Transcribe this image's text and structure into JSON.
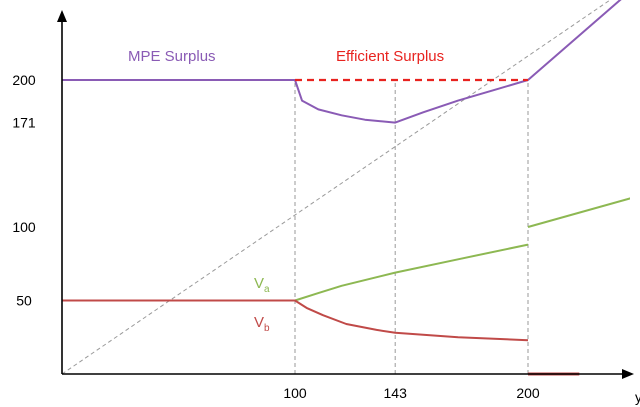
{
  "chart_data": {
    "type": "line",
    "title": "",
    "xlabel": "y",
    "ylabel": "",
    "xlim": [
      0,
      245
    ],
    "ylim": [
      0,
      265
    ],
    "x_ticks": [
      "100",
      "143",
      "200"
    ],
    "y_ticks": [
      "200",
      "171",
      "100",
      "50"
    ],
    "grid": false,
    "legend": "none",
    "colors": {
      "purple": "#8A5BB5",
      "red": "#E8231F",
      "green": "#8DB852",
      "darkred": "#C04A48",
      "dash": "#9a9a9a",
      "axis": "#000000"
    },
    "annotations": {
      "mpe_surplus": "MPE Surplus",
      "efficient_surplus": "Efficient Surplus",
      "va": "V",
      "va_sub": "a",
      "vb": "V",
      "vb_sub": "b"
    },
    "series": [
      {
        "key": "mpe_surplus",
        "points": [
          [
            0,
            200
          ],
          [
            100,
            200
          ],
          [
            103,
            186
          ],
          [
            110,
            180
          ],
          [
            120,
            176
          ],
          [
            130,
            173
          ],
          [
            143,
            171
          ],
          [
            155,
            178
          ],
          [
            170,
            186
          ],
          [
            185,
            193
          ],
          [
            200,
            200
          ],
          [
            245,
            262
          ]
        ]
      },
      {
        "key": "efficient_surplus",
        "style": "dashed",
        "points": [
          [
            100,
            200
          ],
          [
            200,
            200
          ]
        ]
      },
      {
        "key": "va",
        "segments": [
          [
            [
              0,
              50
            ],
            [
              100,
              50
            ],
            [
              110,
              55
            ],
            [
              120,
              60
            ],
            [
              143,
              69
            ],
            [
              170,
              78
            ],
            [
              200,
              88
            ]
          ],
          [
            [
              200,
              100
            ],
            [
              245,
              120
            ]
          ]
        ]
      },
      {
        "key": "vb",
        "segments": [
          [
            [
              0,
              50
            ],
            [
              100,
              50
            ],
            [
              105,
              45
            ],
            [
              112,
              40
            ],
            [
              122,
              34
            ],
            [
              135,
              30
            ],
            [
              143,
              28
            ],
            [
              170,
              25
            ],
            [
              200,
              23
            ]
          ],
          [
            [
              200,
              0
            ],
            [
              222,
              0
            ]
          ]
        ]
      }
    ],
    "reference_lines": {
      "diagonal": [
        [
          0,
          0
        ],
        [
          245,
          265
        ]
      ],
      "vertical_at_x": [
        100,
        143,
        200
      ]
    }
  }
}
